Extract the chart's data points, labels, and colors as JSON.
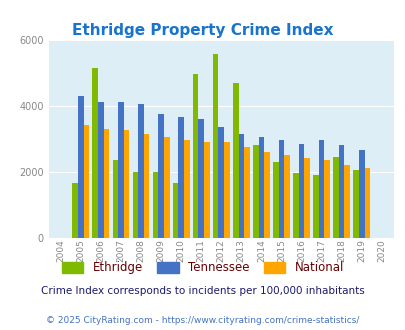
{
  "title": "Ethridge Property Crime Index",
  "years": [
    2004,
    2005,
    2006,
    2007,
    2008,
    2009,
    2010,
    2011,
    2012,
    2013,
    2014,
    2015,
    2016,
    2017,
    2018,
    2019,
    2020
  ],
  "ethridge": [
    0,
    1650,
    5150,
    2350,
    2000,
    2000,
    1650,
    4950,
    5550,
    4700,
    2800,
    2300,
    1950,
    1900,
    2450,
    2050,
    0
  ],
  "tennessee": [
    0,
    4300,
    4100,
    4100,
    4050,
    3750,
    3650,
    3600,
    3350,
    3150,
    3050,
    2950,
    2850,
    2950,
    2800,
    2650,
    0
  ],
  "national": [
    0,
    3400,
    3300,
    3250,
    3150,
    3050,
    2950,
    2900,
    2900,
    2750,
    2600,
    2500,
    2400,
    2350,
    2200,
    2100,
    0
  ],
  "ethridge_color": "#7fba00",
  "tennessee_color": "#4472c4",
  "national_color": "#ffa500",
  "bg_color": "#ddeef6",
  "ylim": [
    0,
    6000
  ],
  "yticks": [
    0,
    2000,
    4000,
    6000
  ],
  "subtitle": "Crime Index corresponds to incidents per 100,000 inhabitants",
  "footer": "© 2025 CityRating.com - https://www.cityrating.com/crime-statistics/",
  "title_color": "#1874CD",
  "legend_text_color": "#660000",
  "subtitle_color": "#1a1a6e",
  "footer_color": "#4472c4"
}
